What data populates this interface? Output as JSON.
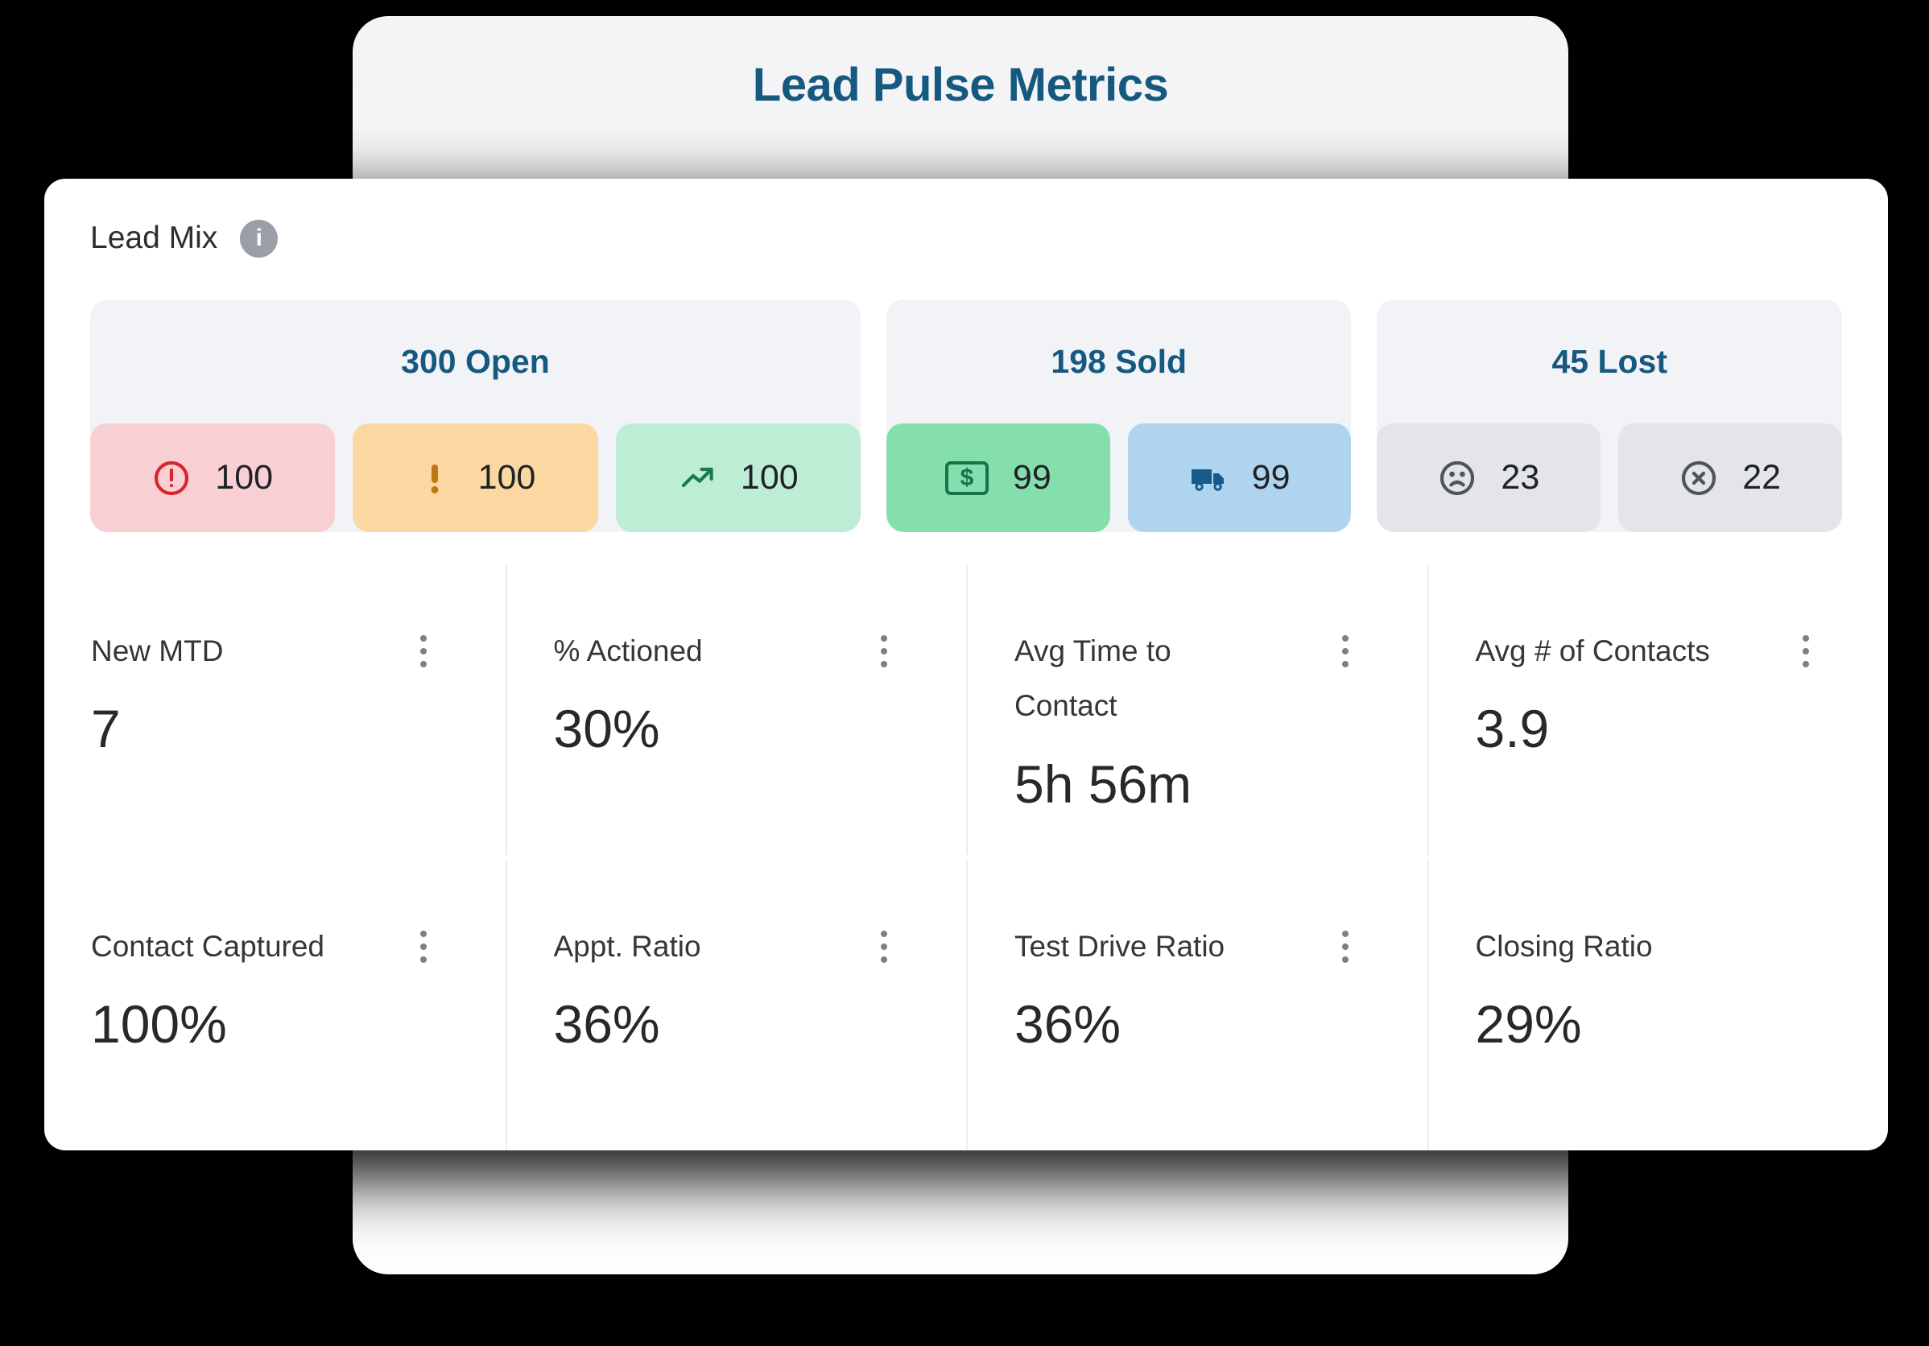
{
  "title_card": {
    "title": "Lead Pulse Metrics",
    "title_color": "#155880"
  },
  "lead_mix": {
    "label": "Lead Mix",
    "info_glyph": "i",
    "group_title_color": "#155880",
    "groups": [
      {
        "id": "open",
        "title": "300 Open",
        "pills": [
          {
            "icon": "alert-circle-icon",
            "icon_color": "#d8252c",
            "bg": "#f8d0d4",
            "value": "100"
          },
          {
            "icon": "exclamation-icon",
            "icon_color": "#bb7813",
            "bg": "#fbd8a2",
            "value": "100"
          },
          {
            "icon": "trend-up-icon",
            "icon_color": "#1a7a4e",
            "bg": "#bdeed5",
            "value": "100"
          }
        ]
      },
      {
        "id": "sold",
        "title": "198 Sold",
        "pills": [
          {
            "icon": "banknote-icon",
            "icon_color": "#13754a",
            "bg": "#85dfad",
            "value": "99"
          },
          {
            "icon": "truck-icon",
            "icon_color": "#175a8c",
            "bg": "#afd4f0",
            "value": "99"
          }
        ]
      },
      {
        "id": "lost",
        "title": "45 Lost",
        "pills": [
          {
            "icon": "frown-icon",
            "icon_color": "#505459",
            "bg": "#e3e5e9",
            "value": "23"
          },
          {
            "icon": "x-circle-icon",
            "icon_color": "#505459",
            "bg": "#e3e5e9",
            "value": "22"
          }
        ]
      }
    ]
  },
  "metrics": [
    {
      "label": "New MTD",
      "value": "7",
      "has_menu": true
    },
    {
      "label": "% Actioned",
      "value": "30%",
      "has_menu": true
    },
    {
      "label": "Avg Time to Contact",
      "value": "5h 56m",
      "has_menu": true
    },
    {
      "label": "Avg # of Contacts",
      "value": "3.9",
      "has_menu": true
    },
    {
      "label": "Contact Captured",
      "value": "100%",
      "has_menu": true
    },
    {
      "label": "Appt. Ratio",
      "value": "36%",
      "has_menu": true
    },
    {
      "label": "Test Drive Ratio",
      "value": "36%",
      "has_menu": true
    },
    {
      "label": "Closing Ratio",
      "value": "29%",
      "has_menu": false
    }
  ]
}
